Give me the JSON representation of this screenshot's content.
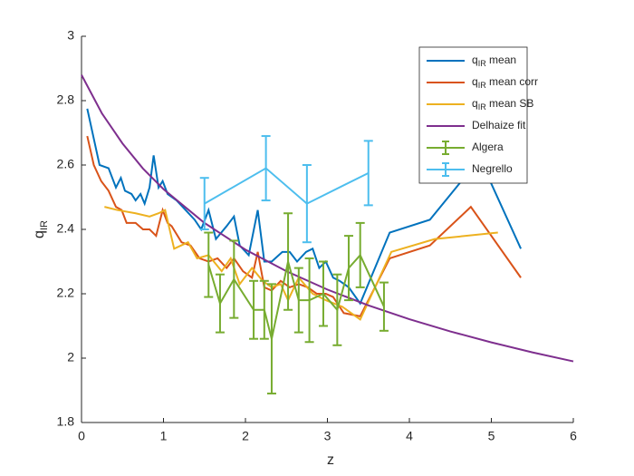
{
  "chart_data": {
    "type": "line",
    "xlabel": "z",
    "ylabel": [
      "q",
      "IR"
    ],
    "xlim": [
      0,
      6
    ],
    "xticks": [
      0,
      1,
      2,
      3,
      4,
      5,
      6
    ],
    "ylim": [
      1.8,
      3
    ],
    "yticks": [
      1.8,
      2,
      2.2,
      2.4,
      2.6,
      2.8,
      3
    ],
    "legend": "northeast",
    "series": [
      {
        "name": [
          "q",
          "IR",
          " mean"
        ],
        "color": "#0072BD",
        "x": [
          0.07,
          0.22,
          0.33,
          0.42,
          0.48,
          0.53,
          0.61,
          0.66,
          0.72,
          0.77,
          0.83,
          0.88,
          0.94,
          0.99,
          1.05,
          1.16,
          1.27,
          1.38,
          1.46,
          1.55,
          1.64,
          1.77,
          1.86,
          1.93,
          2.04,
          2.15,
          2.23,
          2.32,
          2.45,
          2.54,
          2.63,
          2.74,
          2.82,
          2.9,
          2.98,
          3.07,
          3.15,
          3.26,
          3.4,
          3.76,
          4.25,
          4.86,
          5.36
        ],
        "values": [
          2.775,
          2.6,
          2.59,
          2.53,
          2.56,
          2.52,
          2.51,
          2.49,
          2.51,
          2.48,
          2.53,
          2.63,
          2.53,
          2.55,
          2.51,
          2.49,
          2.46,
          2.43,
          2.4,
          2.46,
          2.37,
          2.41,
          2.44,
          2.35,
          2.32,
          2.46,
          2.3,
          2.3,
          2.33,
          2.33,
          2.3,
          2.33,
          2.34,
          2.28,
          2.3,
          2.25,
          2.24,
          2.22,
          2.17,
          2.39,
          2.43,
          2.62,
          2.34
        ]
      },
      {
        "name": [
          "q",
          "IR",
          " mean corr"
        ],
        "color": "#D95319",
        "x": [
          0.07,
          0.15,
          0.24,
          0.33,
          0.42,
          0.49,
          0.55,
          0.66,
          0.75,
          0.83,
          0.91,
          0.99,
          1.05,
          1.1,
          1.22,
          1.33,
          1.44,
          1.55,
          1.66,
          1.77,
          1.86,
          1.97,
          2.08,
          2.15,
          2.23,
          2.32,
          2.43,
          2.54,
          2.65,
          2.76,
          2.87,
          2.98,
          3.07,
          3.2,
          3.4,
          3.76,
          4.25,
          4.75,
          5.36
        ],
        "values": [
          2.69,
          2.6,
          2.55,
          2.52,
          2.47,
          2.46,
          2.42,
          2.42,
          2.4,
          2.4,
          2.38,
          2.46,
          2.42,
          2.41,
          2.36,
          2.35,
          2.31,
          2.3,
          2.31,
          2.28,
          2.31,
          2.27,
          2.25,
          2.33,
          2.22,
          2.21,
          2.24,
          2.22,
          2.23,
          2.22,
          2.2,
          2.2,
          2.19,
          2.14,
          2.13,
          2.31,
          2.35,
          2.47,
          2.25
        ]
      },
      {
        "name": [
          "q",
          "IR",
          " mean SB"
        ],
        "color": "#EDB120",
        "x": [
          0.28,
          0.44,
          0.66,
          0.83,
          0.94,
          1.02,
          1.13,
          1.3,
          1.41,
          1.55,
          1.71,
          1.82,
          1.93,
          2.08,
          2.21,
          2.32,
          2.43,
          2.52,
          2.65,
          2.82,
          2.98,
          3.18,
          3.4,
          3.78,
          4.31,
          5.08
        ],
        "values": [
          2.47,
          2.46,
          2.45,
          2.44,
          2.45,
          2.46,
          2.34,
          2.36,
          2.31,
          2.32,
          2.27,
          2.31,
          2.23,
          2.28,
          2.24,
          2.22,
          2.23,
          2.18,
          2.25,
          2.2,
          2.18,
          2.16,
          2.12,
          2.33,
          2.37,
          2.39
        ]
      },
      {
        "name": [
          "Delhaize fit"
        ],
        "color": "#7E2F8E",
        "x": [
          0,
          0.25,
          0.5,
          0.75,
          1,
          1.5,
          2,
          2.5,
          3,
          3.5,
          4,
          4.5,
          5,
          5.5,
          6
        ],
        "values": [
          2.88,
          2.76,
          2.667,
          2.589,
          2.525,
          2.42,
          2.337,
          2.27,
          2.213,
          2.164,
          2.121,
          2.083,
          2.049,
          2.018,
          1.99
        ]
      },
      {
        "name": [
          "Algera"
        ],
        "color": "#77AC30",
        "x": [
          1.55,
          1.69,
          1.86,
          2.1,
          2.23,
          2.32,
          2.52,
          2.65,
          2.78,
          2.95,
          3.12,
          3.26,
          3.4,
          3.69
        ],
        "values": [
          2.29,
          2.17,
          2.245,
          2.15,
          2.15,
          2.06,
          2.3,
          2.18,
          2.18,
          2.2,
          2.15,
          2.28,
          2.32,
          2.16
        ],
        "errors": [
          0.1,
          0.09,
          0.12,
          0.09,
          0.09,
          0.17,
          0.15,
          0.1,
          0.13,
          0.1,
          0.11,
          0.1,
          0.1,
          0.075
        ]
      },
      {
        "name": [
          "Negrello"
        ],
        "color": "#4DBEEE",
        "x": [
          1.5,
          2.25,
          2.75,
          3.5
        ],
        "values": [
          2.48,
          2.59,
          2.48,
          2.575
        ],
        "errors": [
          0.08,
          0.1,
          0.12,
          0.1
        ]
      }
    ]
  }
}
